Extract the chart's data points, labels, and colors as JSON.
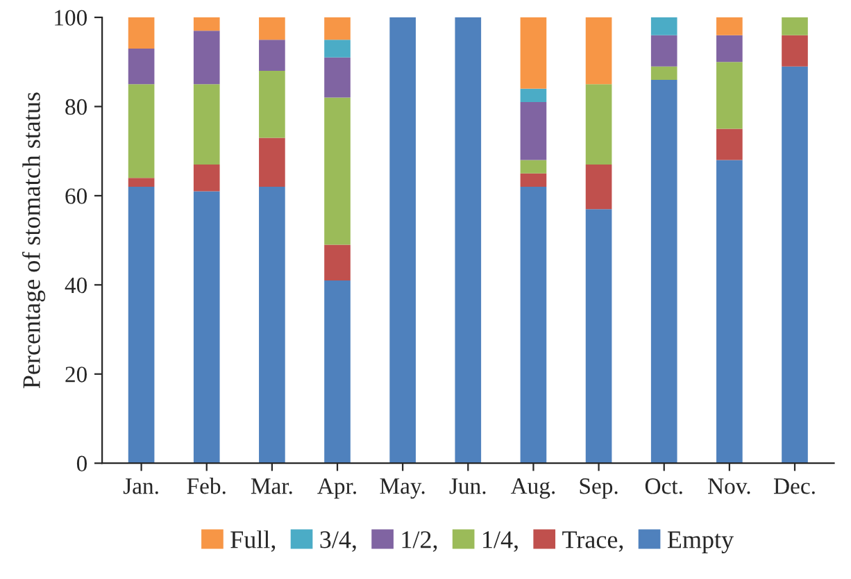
{
  "chart_data": {
    "type": "bar",
    "stacked": true,
    "ylabel": "Percentage of stomatch status",
    "categories": [
      "Jan.",
      "Feb.",
      "Mar.",
      "Apr.",
      "May.",
      "Jun.",
      "Aug.",
      "Sep.",
      "Oct.",
      "Nov.",
      "Dec."
    ],
    "series": [
      {
        "name": "Empty",
        "color": "#4f81bd",
        "values": [
          62,
          61,
          62,
          41,
          100,
          100,
          62,
          57,
          86,
          68,
          89
        ]
      },
      {
        "name": "Trace,",
        "color": "#c0504d",
        "values": [
          2,
          6,
          11,
          8,
          0,
          0,
          3,
          10,
          0,
          7,
          7
        ]
      },
      {
        "name": "1/4,",
        "color": "#9bbb59",
        "values": [
          21,
          18,
          15,
          33,
          0,
          0,
          3,
          18,
          3,
          15,
          4
        ]
      },
      {
        "name": "1/2,",
        "color": "#8064a2",
        "values": [
          8,
          12,
          7,
          9,
          0,
          0,
          13,
          0,
          7,
          6,
          0
        ]
      },
      {
        "name": "3/4,",
        "color": "#4bacc6",
        "values": [
          0,
          0,
          0,
          4,
          0,
          0,
          3,
          0,
          4,
          0,
          0
        ]
      },
      {
        "name": "Full,",
        "color": "#f79646",
        "values": [
          7,
          3,
          5,
          5,
          0,
          0,
          16,
          15,
          0,
          4,
          0
        ]
      }
    ],
    "ylim": [
      0,
      100
    ],
    "yticks": [
      0,
      20,
      40,
      60,
      80,
      100
    ],
    "grid": false,
    "legend": "bottom"
  }
}
